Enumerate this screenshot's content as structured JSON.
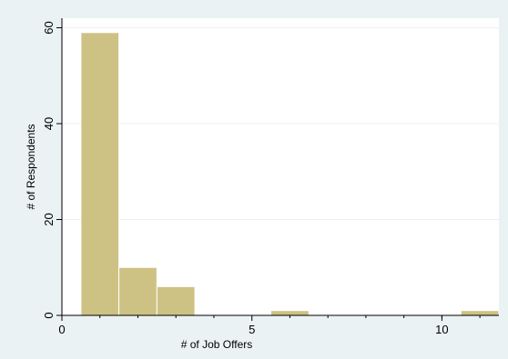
{
  "chart_data": {
    "type": "bar",
    "title": "",
    "xlabel": "# of Job Offers",
    "ylabel": "# of Respondents",
    "xlim": [
      0,
      11.5
    ],
    "ylim": [
      0,
      62
    ],
    "x_ticks": [
      0,
      5,
      10
    ],
    "x_minor_ticks": [
      1,
      2,
      3,
      4,
      6,
      7,
      8,
      9,
      10,
      11
    ],
    "y_ticks": [
      0,
      20,
      40,
      60
    ],
    "grid": true,
    "bin_width": 1,
    "bins": [
      {
        "x": 1,
        "count": 59
      },
      {
        "x": 2,
        "count": 10
      },
      {
        "x": 3,
        "count": 6
      },
      {
        "x": 6,
        "count": 1
      },
      {
        "x": 11,
        "count": 1
      }
    ],
    "colors": {
      "background": "#eaf2f3",
      "plot_background": "#ffffff",
      "bar_fill": "#cdc283",
      "bar_outline": "#ffffff",
      "grid": "#eaf2f3"
    }
  }
}
